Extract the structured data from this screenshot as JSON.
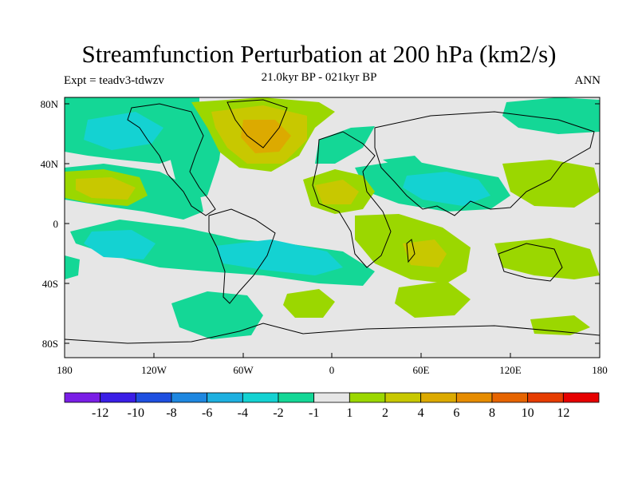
{
  "header": {
    "title": "Streamfunction Perturbation at 200 hPa (km2/s)",
    "expt": "Expt = teadv3-tdwzv",
    "period": "21.0kyr BP - 021kyr BP",
    "season": "ANN"
  },
  "axes": {
    "y_ticks": [
      "80N",
      "40N",
      "0",
      "40S",
      "80S"
    ],
    "x_ticks": [
      "180",
      "120W",
      "60W",
      "0",
      "60E",
      "120E",
      "180"
    ]
  },
  "colorbar": {
    "colors": [
      "#7a1ee6",
      "#3a1ee6",
      "#1e4fe0",
      "#1e87e0",
      "#1eb0e0",
      "#14d2d2",
      "#14d796",
      "#e6e6e6",
      "#9bd700",
      "#c8c800",
      "#dcaa00",
      "#e68c00",
      "#e66400",
      "#e63c00",
      "#e60000"
    ],
    "labels": [
      "-12",
      "-10",
      "-8",
      "-6",
      "-4",
      "-2",
      "-1",
      "1",
      "2",
      "4",
      "6",
      "8",
      "10",
      "12"
    ]
  }
}
